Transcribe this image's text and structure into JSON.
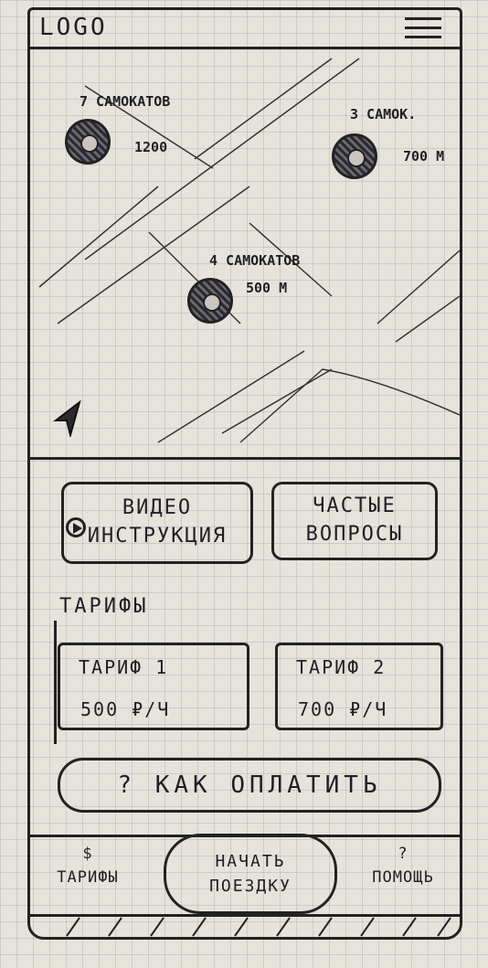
{
  "header": {
    "logo": "LOGO",
    "menu_icon": "hamburger-menu-icon"
  },
  "map": {
    "markers": [
      {
        "count_label": "7 САМОКАТОВ",
        "distance": "1200"
      },
      {
        "count_label": "3 САМОК.",
        "distance": "700 М"
      },
      {
        "count_label": "4 САМОКАТОВ",
        "distance": "500 М"
      }
    ],
    "location_icon": "navigation-arrow-icon"
  },
  "info_buttons": {
    "video": {
      "line1": "ВИДЕО",
      "line2": "ИНСТРУКЦИЯ",
      "icon": "play-icon"
    },
    "faq": {
      "line1": "ЧАСТЫЕ",
      "line2": "ВОПРОСЫ"
    }
  },
  "tariffs": {
    "title": "ТАРИФЫ",
    "items": [
      {
        "name": "ТАРИФ 1",
        "price": "500 ₽/Ч"
      },
      {
        "name": "ТАРИФ 2",
        "price": "700 ₽/Ч"
      }
    ]
  },
  "pay_button": {
    "label": "? КАК ОПЛАТИТЬ"
  },
  "bottom_nav": {
    "tariffs": {
      "icon": "$",
      "label": "ТАРИФЫ"
    },
    "start": {
      "line1": "НАЧАТЬ",
      "line2": "ПОЕЗДКУ"
    },
    "help": {
      "icon": "?",
      "label": "ПОМОЩЬ"
    }
  }
}
